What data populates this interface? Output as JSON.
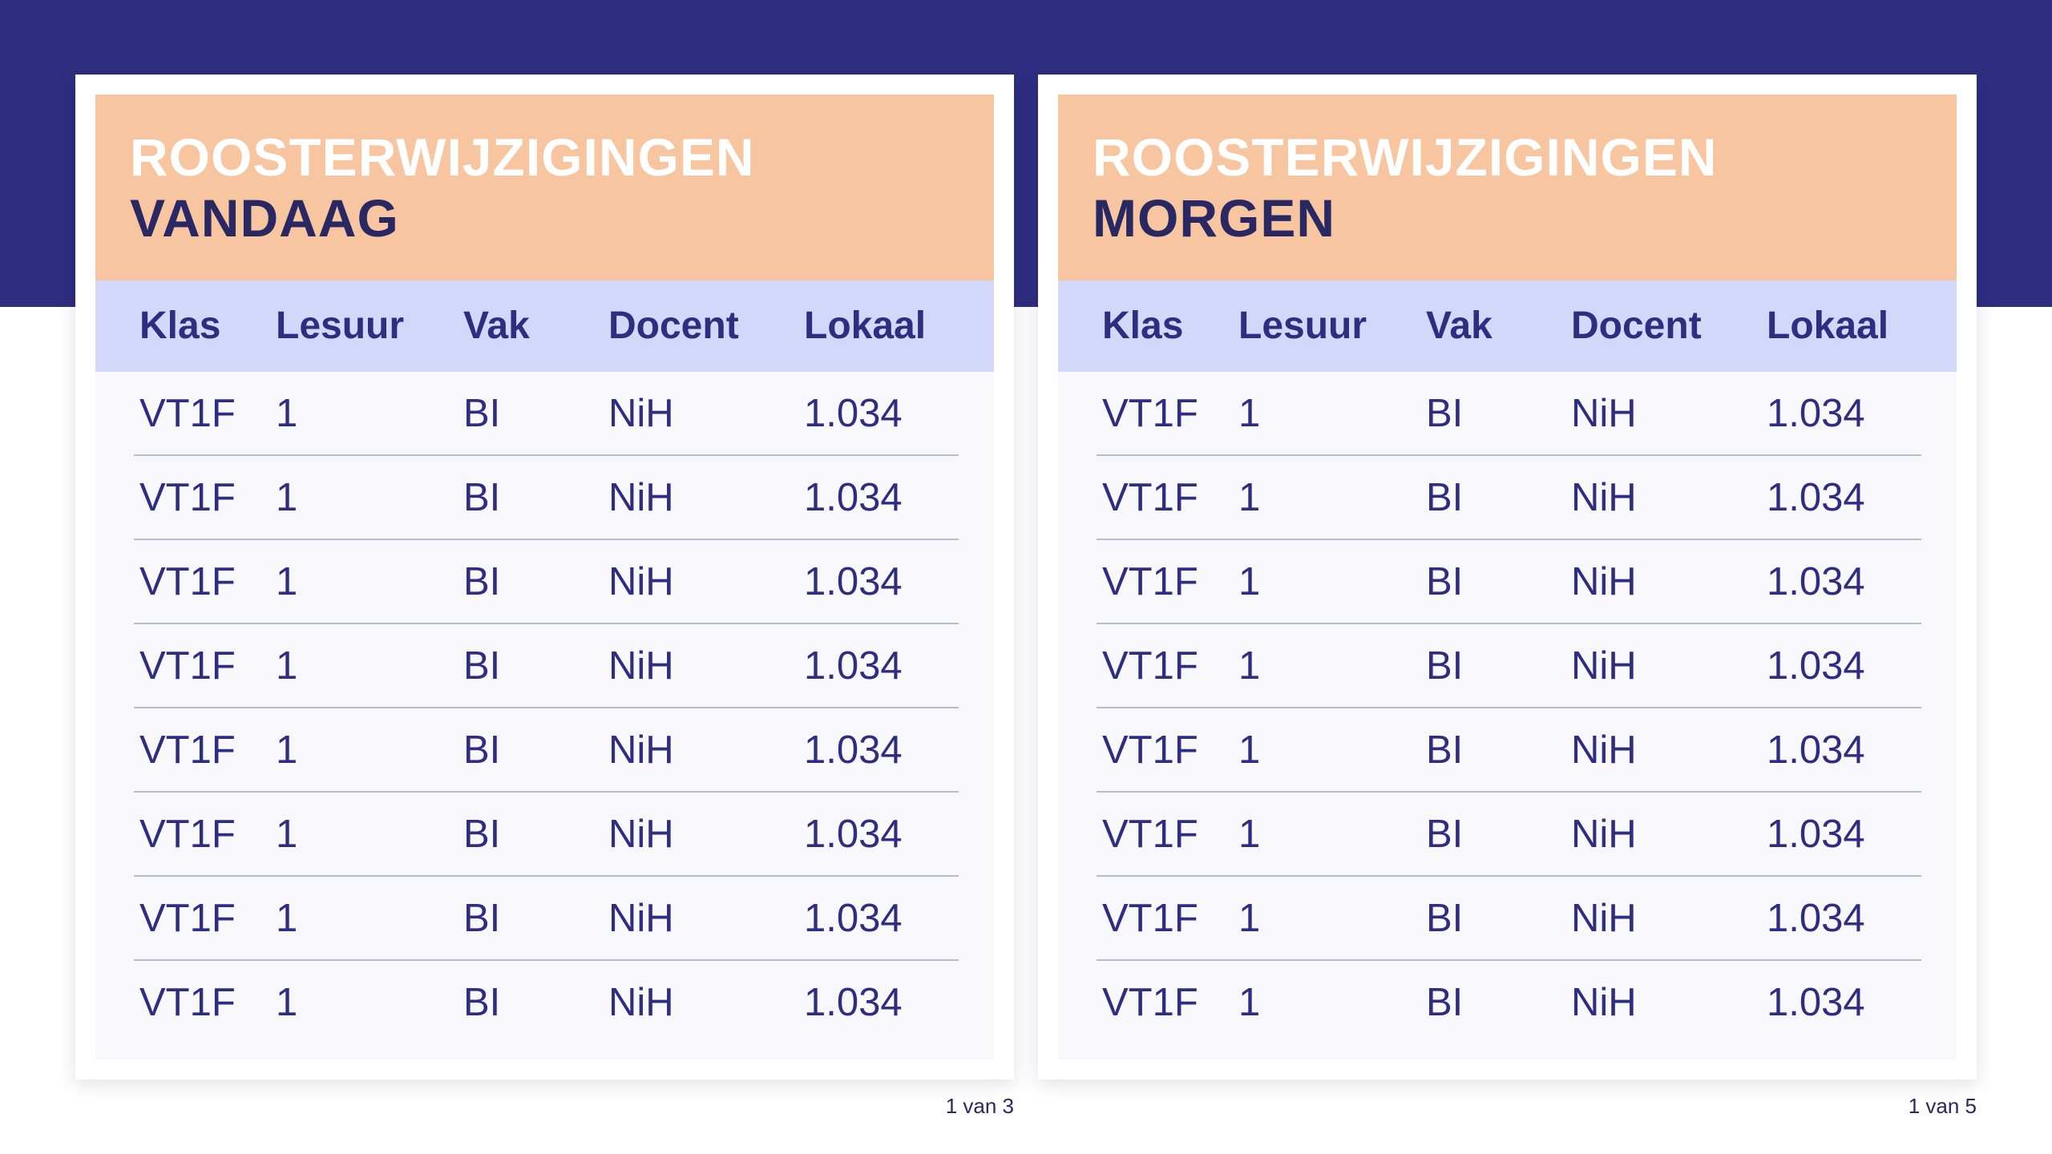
{
  "left_panel": {
    "title_line1": "ROOSTERWIJZIGINGEN",
    "title_line2": "VANDAAG",
    "headers": {
      "klas": "Klas",
      "lesuur": "Lesuur",
      "vak": "Vak",
      "docent": "Docent",
      "lokaal": "Lokaal"
    },
    "rows": [
      {
        "klas": "VT1F",
        "lesuur": "1",
        "vak": "BI",
        "docent": "NiH",
        "lokaal": "1.034"
      },
      {
        "klas": "VT1F",
        "lesuur": "1",
        "vak": "BI",
        "docent": "NiH",
        "lokaal": "1.034"
      },
      {
        "klas": "VT1F",
        "lesuur": "1",
        "vak": "BI",
        "docent": "NiH",
        "lokaal": "1.034"
      },
      {
        "klas": "VT1F",
        "lesuur": "1",
        "vak": "BI",
        "docent": "NiH",
        "lokaal": "1.034"
      },
      {
        "klas": "VT1F",
        "lesuur": "1",
        "vak": "BI",
        "docent": "NiH",
        "lokaal": "1.034"
      },
      {
        "klas": "VT1F",
        "lesuur": "1",
        "vak": "BI",
        "docent": "NiH",
        "lokaal": "1.034"
      },
      {
        "klas": "VT1F",
        "lesuur": "1",
        "vak": "BI",
        "docent": "NiH",
        "lokaal": "1.034"
      },
      {
        "klas": "VT1F",
        "lesuur": "1",
        "vak": "BI",
        "docent": "NiH",
        "lokaal": "1.034"
      }
    ],
    "page_count": "1 van 3"
  },
  "right_panel": {
    "title_line1": "ROOSTERWIJZIGINGEN",
    "title_line2": "MORGEN",
    "headers": {
      "klas": "Klas",
      "lesuur": "Lesuur",
      "vak": "Vak",
      "docent": "Docent",
      "lokaal": "Lokaal"
    },
    "rows": [
      {
        "klas": "VT1F",
        "lesuur": "1",
        "vak": "BI",
        "docent": "NiH",
        "lokaal": "1.034"
      },
      {
        "klas": "VT1F",
        "lesuur": "1",
        "vak": "BI",
        "docent": "NiH",
        "lokaal": "1.034"
      },
      {
        "klas": "VT1F",
        "lesuur": "1",
        "vak": "BI",
        "docent": "NiH",
        "lokaal": "1.034"
      },
      {
        "klas": "VT1F",
        "lesuur": "1",
        "vak": "BI",
        "docent": "NiH",
        "lokaal": "1.034"
      },
      {
        "klas": "VT1F",
        "lesuur": "1",
        "vak": "BI",
        "docent": "NiH",
        "lokaal": "1.034"
      },
      {
        "klas": "VT1F",
        "lesuur": "1",
        "vak": "BI",
        "docent": "NiH",
        "lokaal": "1.034"
      },
      {
        "klas": "VT1F",
        "lesuur": "1",
        "vak": "BI",
        "docent": "NiH",
        "lokaal": "1.034"
      },
      {
        "klas": "VT1F",
        "lesuur": "1",
        "vak": "BI",
        "docent": "NiH",
        "lokaal": "1.034"
      }
    ],
    "page_count": "1 van 5"
  },
  "colors": {
    "brand_navy": "#2e2d80",
    "header_peach": "#f7c6a0",
    "column_header_lavender": "#d3d7fa"
  }
}
